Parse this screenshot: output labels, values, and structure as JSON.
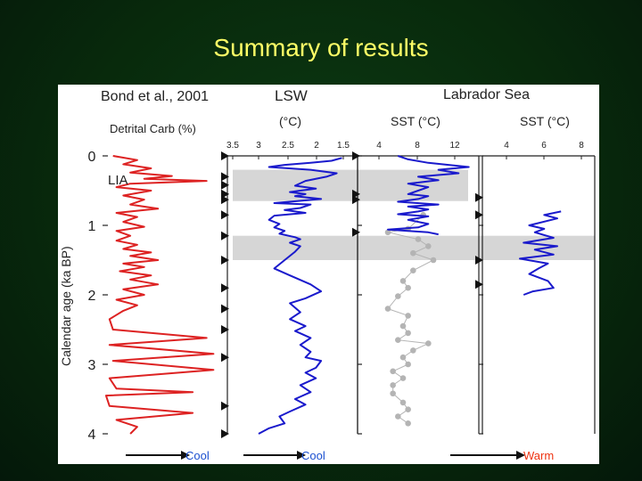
{
  "slide": {
    "title": "Summary of results"
  },
  "chart_data": {
    "type": "line",
    "y_axis": {
      "label": "Calendar age (ka BP)",
      "range": [
        0,
        4
      ],
      "ticks": [
        "0",
        "1",
        "2",
        "3",
        "4"
      ],
      "inverted": true
    },
    "panels": [
      {
        "header": "Bond et al., 2001",
        "xlabel": "Detrital Carb (%)",
        "arrow_label": "Cool",
        "series_color": "#dd2222",
        "annotation": "LIA",
        "points": [
          [
            1.5,
            0.0
          ],
          [
            5,
            0.06
          ],
          [
            3,
            0.12
          ],
          [
            7,
            0.18
          ],
          [
            4,
            0.24
          ],
          [
            10,
            0.29
          ],
          [
            6,
            0.33
          ],
          [
            15,
            0.36
          ],
          [
            4,
            0.4
          ],
          [
            2,
            0.45
          ],
          [
            7,
            0.5
          ],
          [
            3,
            0.57
          ],
          [
            6,
            0.63
          ],
          [
            4,
            0.7
          ],
          [
            8,
            0.76
          ],
          [
            2,
            0.82
          ],
          [
            5,
            0.88
          ],
          [
            3,
            0.95
          ],
          [
            6,
            1.02
          ],
          [
            2,
            1.08
          ],
          [
            4,
            1.15
          ],
          [
            2,
            1.22
          ],
          [
            5,
            1.28
          ],
          [
            3,
            1.34
          ],
          [
            7,
            1.39
          ],
          [
            4,
            1.44
          ],
          [
            8,
            1.5
          ],
          [
            3,
            1.55
          ],
          [
            6,
            1.6
          ],
          [
            2.5,
            1.66
          ],
          [
            7,
            1.72
          ],
          [
            4,
            1.78
          ],
          [
            8,
            1.85
          ],
          [
            3,
            1.92
          ],
          [
            6,
            2.0
          ],
          [
            2,
            2.07
          ],
          [
            5,
            2.15
          ],
          [
            3,
            2.23
          ],
          [
            1,
            2.35
          ],
          [
            1.5,
            2.5
          ],
          [
            15,
            2.62
          ],
          [
            1,
            2.72
          ],
          [
            16,
            2.85
          ],
          [
            1.5,
            2.95
          ],
          [
            16,
            3.08
          ],
          [
            1,
            3.2
          ],
          [
            2,
            3.35
          ],
          [
            13,
            3.4
          ],
          [
            0.5,
            3.45
          ],
          [
            1,
            3.6
          ],
          [
            13,
            3.7
          ],
          [
            2,
            3.8
          ],
          [
            5,
            3.9
          ],
          [
            4,
            4.0
          ]
        ]
      },
      {
        "header": "LSW",
        "xlabel": "(°C)",
        "x_ticks": [
          "3.5",
          "3",
          "2.5",
          "2",
          "1.5"
        ],
        "arrow_label": "Cool",
        "series_color": "#1a1acc",
        "points": [
          [
            1.6,
            0.03
          ],
          [
            1.8,
            0.07
          ],
          [
            2.2,
            0.1
          ],
          [
            2.7,
            0.13
          ],
          [
            3.0,
            0.16
          ],
          [
            2.2,
            0.2
          ],
          [
            1.7,
            0.25
          ],
          [
            1.9,
            0.3
          ],
          [
            2.3,
            0.36
          ],
          [
            2.5,
            0.43
          ],
          [
            2.1,
            0.47
          ],
          [
            2.4,
            0.5
          ],
          [
            2.6,
            0.52
          ],
          [
            2.3,
            0.55
          ],
          [
            2.5,
            0.58
          ],
          [
            2.0,
            0.62
          ],
          [
            2.9,
            0.68
          ],
          [
            2.2,
            0.7
          ],
          [
            2.4,
            0.75
          ],
          [
            2.7,
            0.78
          ],
          [
            2.3,
            0.82
          ],
          [
            2.9,
            0.86
          ],
          [
            3.0,
            0.92
          ],
          [
            2.8,
            0.98
          ],
          [
            2.9,
            1.03
          ],
          [
            2.7,
            1.08
          ],
          [
            2.8,
            1.12
          ],
          [
            2.5,
            1.17
          ],
          [
            2.4,
            1.2
          ],
          [
            2.6,
            1.25
          ],
          [
            2.4,
            1.3
          ],
          [
            2.5,
            1.38
          ],
          [
            2.7,
            1.5
          ],
          [
            2.9,
            1.62
          ],
          [
            2.6,
            1.72
          ],
          [
            2.2,
            1.85
          ],
          [
            2.0,
            1.95
          ],
          [
            2.3,
            2.05
          ],
          [
            2.6,
            2.12
          ],
          [
            2.4,
            2.25
          ],
          [
            2.6,
            2.35
          ],
          [
            2.3,
            2.45
          ],
          [
            2.5,
            2.52
          ],
          [
            2.2,
            2.62
          ],
          [
            2.4,
            2.72
          ],
          [
            2.2,
            2.82
          ],
          [
            2.3,
            2.9
          ],
          [
            2.0,
            2.95
          ],
          [
            2.1,
            3.05
          ],
          [
            2.3,
            3.12
          ],
          [
            2.1,
            3.2
          ],
          [
            2.4,
            3.3
          ],
          [
            2.2,
            3.4
          ],
          [
            2.5,
            3.5
          ],
          [
            2.3,
            3.58
          ],
          [
            2.6,
            3.68
          ],
          [
            2.8,
            3.75
          ],
          [
            2.7,
            3.85
          ],
          [
            3.0,
            3.92
          ],
          [
            3.2,
            4.0
          ]
        ]
      },
      {
        "header": "Labrador Sea",
        "xlabel": "SST (°C)",
        "x_ticks": [
          "4",
          "8",
          "12"
        ],
        "series_color": "#1a1acc",
        "secondary_color": "#b4b4b4",
        "points": [
          [
            6,
            0.0
          ],
          [
            7,
            0.05
          ],
          [
            9,
            0.1
          ],
          [
            11,
            0.13
          ],
          [
            13,
            0.16
          ],
          [
            10,
            0.2
          ],
          [
            12,
            0.25
          ],
          [
            8,
            0.3
          ],
          [
            10,
            0.35
          ],
          [
            7,
            0.4
          ],
          [
            9,
            0.45
          ],
          [
            8,
            0.5
          ],
          [
            7,
            0.55
          ],
          [
            9,
            0.58
          ],
          [
            8,
            0.62
          ],
          [
            6,
            0.66
          ],
          [
            10,
            0.7
          ],
          [
            7,
            0.73
          ],
          [
            9,
            0.77
          ],
          [
            8,
            0.8
          ],
          [
            6,
            0.84
          ],
          [
            9,
            0.87
          ],
          [
            7,
            0.92
          ],
          [
            9,
            0.98
          ],
          [
            8,
            1.03
          ],
          [
            5,
            1.06
          ],
          [
            9,
            1.1
          ],
          [
            10,
            1.13
          ]
        ],
        "gray_points": [
          [
            8.5,
            0.85
          ],
          [
            7,
            1.05
          ],
          [
            5,
            1.1
          ],
          [
            8,
            1.2
          ],
          [
            9,
            1.3
          ],
          [
            7.5,
            1.4
          ],
          [
            9.5,
            1.5
          ],
          [
            7.5,
            1.65
          ],
          [
            6.5,
            1.8
          ],
          [
            7,
            1.9
          ],
          [
            6,
            2.02
          ],
          [
            5,
            2.2
          ],
          [
            7,
            2.3
          ],
          [
            6.5,
            2.45
          ],
          [
            7,
            2.55
          ],
          [
            6,
            2.65
          ],
          [
            9,
            2.7
          ],
          [
            7.5,
            2.8
          ],
          [
            6.5,
            2.9
          ],
          [
            7,
            3.0
          ],
          [
            5.5,
            3.1
          ],
          [
            6.5,
            3.2
          ],
          [
            5.5,
            3.3
          ],
          [
            5.5,
            3.42
          ],
          [
            6.5,
            3.55
          ],
          [
            7,
            3.65
          ],
          [
            6,
            3.75
          ],
          [
            7,
            3.85
          ]
        ]
      },
      {
        "header": "",
        "xlabel": "SST (°C)",
        "x_ticks": [
          "4",
          "6",
          "8"
        ],
        "arrow_label": "Warm",
        "arrow_label_color": "#ee3311",
        "series_color": "#1a1acc",
        "points": [
          [
            7.2,
            0.8
          ],
          [
            6.3,
            0.85
          ],
          [
            7.0,
            0.9
          ],
          [
            5.5,
            1.0
          ],
          [
            6.3,
            1.05
          ],
          [
            5.8,
            1.1
          ],
          [
            6.8,
            1.18
          ],
          [
            5.2,
            1.25
          ],
          [
            7.0,
            1.3
          ],
          [
            5.8,
            1.35
          ],
          [
            6.8,
            1.42
          ],
          [
            5.0,
            1.48
          ],
          [
            6.5,
            1.55
          ],
          [
            6.0,
            1.62
          ],
          [
            5.5,
            1.7
          ],
          [
            6.5,
            1.8
          ],
          [
            6.8,
            1.9
          ],
          [
            5.7,
            1.95
          ],
          [
            5.2,
            2.0
          ]
        ]
      }
    ],
    "shaded_bands": [
      [
        0.2,
        0.65
      ],
      [
        1.15,
        1.5
      ]
    ],
    "arrowhead_ages": [
      0.0,
      0.3,
      0.42,
      0.55,
      0.55,
      0.63,
      0.85,
      1.15,
      1.5,
      1.9,
      2.2,
      2.5,
      2.9,
      3.6,
      4.0
    ]
  }
}
